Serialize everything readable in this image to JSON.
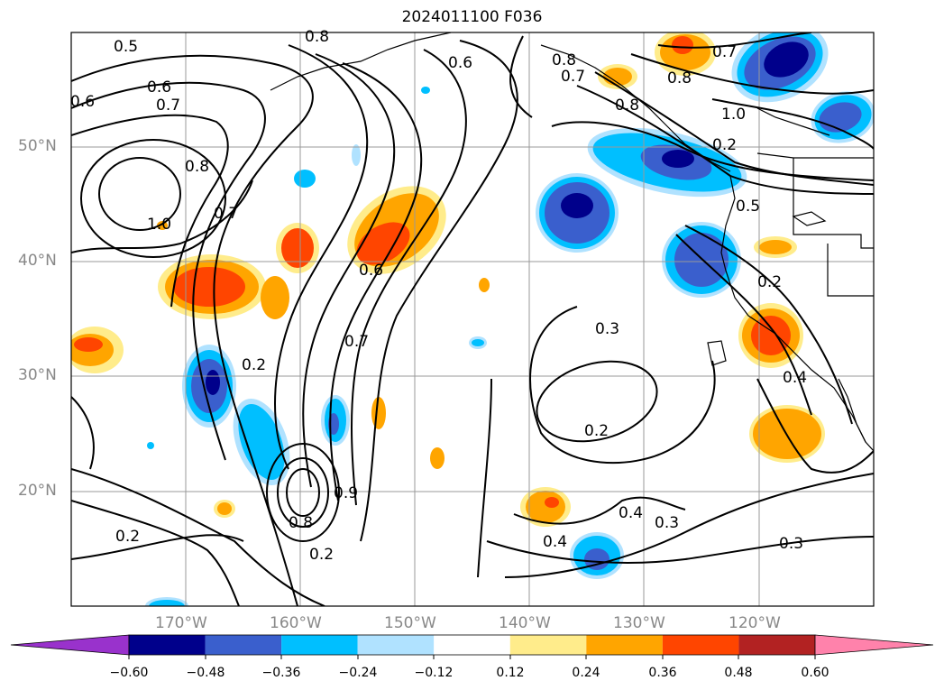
{
  "title": "2024011100 F036",
  "lat_labels": [
    "50°N",
    "40°N",
    "30°N",
    "20°N"
  ],
  "lon_labels": [
    "170°W",
    "160°W",
    "150°W",
    "140°W",
    "130°W",
    "120°W"
  ],
  "colorbar": {
    "tick_labels": [
      "−0.60",
      "−0.48",
      "−0.36",
      "−0.24",
      "−0.12",
      "0.12",
      "0.24",
      "0.36",
      "0.48",
      "0.60"
    ],
    "colors": [
      "#9932CC",
      "#00008B",
      "#3A5FCD",
      "#00BFFF",
      "#B0E2FF",
      "#FFFFFF",
      "#FFEC8B",
      "#FFA500",
      "#FF4500",
      "#B22222",
      "#FF82AB"
    ],
    "extend": "both"
  },
  "contour_labels": [
    "0.5",
    "0.6",
    "0.7",
    "0.8",
    "1.0",
    "0.6",
    "0.6",
    "0.7",
    "0.8",
    "0.7",
    "0.7",
    "1.0",
    "0.8",
    "0.8",
    "0.6",
    "0.7",
    "0.5",
    "0.2",
    "0.4",
    "0.3",
    "0.2",
    "0.2",
    "0.2",
    "0.4",
    "0.3",
    "0.3",
    "0.4",
    "0.2",
    "0.2",
    "0.9",
    "0.8",
    "0.8"
  ],
  "map": {
    "projection": "cylindrical",
    "lon_range": [
      -180,
      -110
    ],
    "lat_range": [
      10,
      60
    ],
    "grid": true
  }
}
